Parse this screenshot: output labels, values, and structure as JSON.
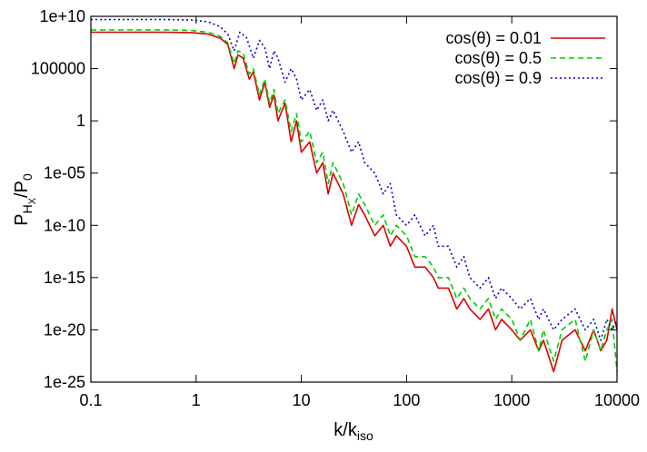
{
  "chart_data": {
    "type": "line",
    "title": "",
    "xlabel": {
      "main": "k/k",
      "sub": "iso"
    },
    "ylabel": {
      "main": "P",
      "sub1": "H",
      "sub2": "X",
      "tail": "/P",
      "tail_sub": "0"
    },
    "x_scale": "log",
    "y_scale": "log",
    "xlim": [
      0.1,
      10000
    ],
    "ylim": [
      1e-25,
      10000000000.0
    ],
    "x_ticks": [
      {
        "value": 0.1,
        "label": "0.1"
      },
      {
        "value": 1,
        "label": "1"
      },
      {
        "value": 10,
        "label": "10"
      },
      {
        "value": 100,
        "label": "100"
      },
      {
        "value": 1000,
        "label": "1000"
      },
      {
        "value": 10000,
        "label": "10000"
      }
    ],
    "y_ticks": [
      {
        "value": 10000000000.0,
        "label": "1e+10"
      },
      {
        "value": 100000.0,
        "label": "100000"
      },
      {
        "value": 1,
        "label": "1"
      },
      {
        "value": 1e-05,
        "label": "1e-05"
      },
      {
        "value": 1e-10,
        "label": "1e-10"
      },
      {
        "value": 1e-15,
        "label": "1e-15"
      },
      {
        "value": 1e-20,
        "label": "1e-20"
      },
      {
        "value": 1e-25,
        "label": "1e-25"
      }
    ],
    "grid": false,
    "legend_position": "top-right",
    "series": [
      {
        "name": "cos(θ) = 0.01",
        "color": "#dd0000",
        "dash": "solid",
        "points": [
          [
            0.1,
            300000000.0
          ],
          [
            0.5,
            300000000.0
          ],
          [
            0.9,
            280000000.0
          ],
          [
            1.3,
            200000000.0
          ],
          [
            1.7,
            80000000.0
          ],
          [
            2.0,
            20000000.0
          ],
          [
            2.3,
            100000.0
          ],
          [
            2.5,
            2000000.0
          ],
          [
            2.8,
            1000000.0
          ],
          [
            3.2,
            10000.0
          ],
          [
            3.5,
            50000.0
          ],
          [
            4.0,
            100.0
          ],
          [
            4.5,
            5000.0
          ],
          [
            5.0,
            20.0
          ],
          [
            5.5,
            300.0
          ],
          [
            6.0,
            1.0
          ],
          [
            7.0,
            50.0
          ],
          [
            8.0,
            0.01
          ],
          [
            9.0,
            1.0
          ],
          [
            10,
            0.001
          ],
          [
            12,
            0.01
          ],
          [
            14,
            1e-05
          ],
          [
            16,
            0.0001
          ],
          [
            18,
            1e-07
          ],
          [
            20,
            1e-05
          ],
          [
            25,
            1e-07
          ],
          [
            30,
            1e-10
          ],
          [
            35,
            1e-08
          ],
          [
            40,
            1e-09
          ],
          [
            50,
            1e-11
          ],
          [
            60,
            1e-10
          ],
          [
            70,
            1e-12
          ],
          [
            80,
            1e-11
          ],
          [
            100,
            1e-12
          ],
          [
            120,
            1e-14
          ],
          [
            150,
            1e-14
          ],
          [
            180,
            1e-15
          ],
          [
            200,
            1e-16
          ],
          [
            250,
            1e-16
          ],
          [
            300,
            1e-18
          ],
          [
            350,
            1e-17
          ],
          [
            400,
            1e-18
          ],
          [
            500,
            1e-19
          ],
          [
            600,
            1e-18
          ],
          [
            700,
            1e-20
          ],
          [
            800,
            1e-19
          ],
          [
            1000,
            1e-20
          ],
          [
            1200,
            1e-21
          ],
          [
            1500,
            1e-20
          ],
          [
            1800,
            1e-22
          ],
          [
            2000,
            1e-21
          ],
          [
            2500,
            1e-24
          ],
          [
            3000,
            1e-21
          ],
          [
            4000,
            1e-20
          ],
          [
            5000,
            1e-22
          ],
          [
            6000,
            1e-20
          ],
          [
            7000,
            1e-22
          ],
          [
            8000,
            1e-21
          ],
          [
            9000,
            1e-18
          ],
          [
            10000,
            1e-20
          ]
        ]
      },
      {
        "name": "cos(θ) = 0.5",
        "color": "#00cc00",
        "dash": "6,4",
        "points": [
          [
            0.1,
            500000000.0
          ],
          [
            0.5,
            500000000.0
          ],
          [
            0.9,
            450000000.0
          ],
          [
            1.3,
            300000000.0
          ],
          [
            1.7,
            120000000.0
          ],
          [
            2.0,
            30000000.0
          ],
          [
            2.3,
            300000.0
          ],
          [
            2.5,
            5000000.0
          ],
          [
            2.8,
            3000000.0
          ],
          [
            3.2,
            30000.0
          ],
          [
            3.5,
            100000.0
          ],
          [
            4.0,
            300.0
          ],
          [
            4.5,
            10000.0
          ],
          [
            5.0,
            50.0
          ],
          [
            5.5,
            1000.0
          ],
          [
            6.0,
            5.0
          ],
          [
            7.0,
            100.0
          ],
          [
            8.0,
            0.1
          ],
          [
            9.0,
            5.0
          ],
          [
            10,
            0.01
          ],
          [
            12,
            0.1
          ],
          [
            14,
            0.0001
          ],
          [
            16,
            0.001
          ],
          [
            18,
            1e-06
          ],
          [
            20,
            0.0001
          ],
          [
            25,
            1e-06
          ],
          [
            30,
            1e-09
          ],
          [
            35,
            1e-07
          ],
          [
            40,
            1e-08
          ],
          [
            50,
            1e-10
          ],
          [
            60,
            1e-09
          ],
          [
            70,
            1e-11
          ],
          [
            80,
            1e-10
          ],
          [
            100,
            1e-11
          ],
          [
            120,
            1e-13
          ],
          [
            150,
            1e-13
          ],
          [
            180,
            1e-14
          ],
          [
            200,
            1e-15
          ],
          [
            250,
            1e-15
          ],
          [
            300,
            1e-17
          ],
          [
            350,
            1e-16
          ],
          [
            400,
            1e-17
          ],
          [
            500,
            1e-18
          ],
          [
            600,
            1e-17
          ],
          [
            700,
            1e-19
          ],
          [
            800,
            1e-18
          ],
          [
            1000,
            1e-19
          ],
          [
            1200,
            1e-21
          ],
          [
            1500,
            1e-19
          ],
          [
            1800,
            1e-22
          ],
          [
            2000,
            1e-20
          ],
          [
            2500,
            1e-23
          ],
          [
            3000,
            1e-20
          ],
          [
            4000,
            1e-19
          ],
          [
            5000,
            1e-23
          ],
          [
            6000,
            1e-20
          ],
          [
            7000,
            1e-22
          ],
          [
            8000,
            1e-20
          ],
          [
            9000,
            1e-19
          ],
          [
            10000,
            1e-24
          ]
        ]
      },
      {
        "name": "cos(θ) = 0.9",
        "color": "#0000cc",
        "dash": "2,3",
        "points": [
          [
            0.1,
            5000000000.0
          ],
          [
            0.5,
            5000000000.0
          ],
          [
            0.9,
            4500000000.0
          ],
          [
            1.3,
            3000000000.0
          ],
          [
            1.7,
            1000000000.0
          ],
          [
            2.0,
            200000000.0
          ],
          [
            2.3,
            5000000.0
          ],
          [
            2.6,
            300000000.0
          ],
          [
            3.0,
            100000000.0
          ],
          [
            3.5,
            1000000.0
          ],
          [
            4.0,
            50000000.0
          ],
          [
            4.5,
            10000000.0
          ],
          [
            5.0,
            100000.0
          ],
          [
            5.5,
            5000000.0
          ],
          [
            6.0,
            1000000.0
          ],
          [
            7.0,
            5000.0
          ],
          [
            8.0,
            100000.0
          ],
          [
            9.0,
            10000.0
          ],
          [
            10,
            100.0
          ],
          [
            12,
            1000.0
          ],
          [
            14,
            10.0
          ],
          [
            16,
            100.0
          ],
          [
            18,
            1.0
          ],
          [
            20,
            10.0
          ],
          [
            25,
            0.1
          ],
          [
            30,
            0.001
          ],
          [
            35,
            0.01
          ],
          [
            40,
            0.0001
          ],
          [
            50,
            1e-05
          ],
          [
            60,
            1e-07
          ],
          [
            70,
            1e-06
          ],
          [
            80,
            1e-09
          ],
          [
            100,
            1e-10
          ],
          [
            120,
            1e-09
          ],
          [
            150,
            1e-11
          ],
          [
            180,
            1e-10
          ],
          [
            200,
            1e-12
          ],
          [
            250,
            1e-12
          ],
          [
            300,
            1e-14
          ],
          [
            350,
            1e-13
          ],
          [
            400,
            1e-15
          ],
          [
            500,
            1e-16
          ],
          [
            600,
            1e-15
          ],
          [
            700,
            1e-17
          ],
          [
            800,
            1e-16
          ],
          [
            1000,
            1e-17
          ],
          [
            1200,
            1e-18
          ],
          [
            1500,
            1e-17
          ],
          [
            1800,
            1e-19
          ],
          [
            2000,
            1e-18
          ],
          [
            2500,
            1e-20
          ],
          [
            3000,
            1e-19
          ],
          [
            4000,
            1e-18
          ],
          [
            5000,
            1e-20
          ],
          [
            6000,
            1e-19
          ],
          [
            7000,
            1e-21
          ],
          [
            8000,
            1e-19
          ],
          [
            9000,
            1e-20
          ],
          [
            10000,
            1e-19
          ]
        ]
      }
    ]
  }
}
